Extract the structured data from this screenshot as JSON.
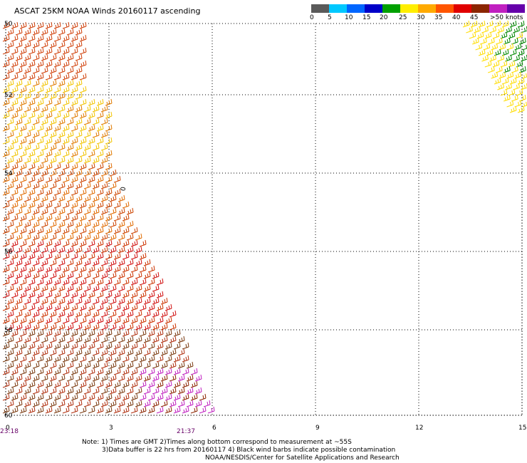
{
  "title": "ASCAT 25KM NOAA Winds 20160117 ascending",
  "legend": {
    "colors": [
      "#5a5a5a",
      "#00c8ff",
      "#0066ff",
      "#0000c8",
      "#00a000",
      "#ffee00",
      "#ffaa00",
      "#ff5500",
      "#e00000",
      "#8b2500",
      "#c020c0",
      "#6600aa"
    ],
    "labels": [
      "0",
      "5",
      "10",
      "15",
      "20",
      "25",
      "30",
      "35",
      "40",
      "45",
      ">50 knots"
    ]
  },
  "axes": {
    "x_ticks": [
      "0",
      "3",
      "6",
      "9",
      "12",
      "15"
    ],
    "y_ticks": [
      "50",
      "52",
      "54",
      "56",
      "58",
      "60"
    ],
    "time_start": "23:18",
    "time_end": "21:37",
    "marker": "0"
  },
  "swaths": [
    {
      "name": "west-swath",
      "colors": [
        "#cc3300",
        "#ee7700",
        "#ffcc00",
        "#dd0000",
        "#aa3300",
        "#cc00cc"
      ]
    },
    {
      "name": "east-swath",
      "colors": [
        "#ffee00",
        "#00a000"
      ]
    }
  ],
  "notes": {
    "line1": "Note: 1) Times are GMT 2)Times along bottom correspond to measurement at ~55S",
    "line2": "3)Data buffer is 22 hrs from 20160117 4) Black wind barbs indicate possible contamination",
    "line3": "NOAA/NESDIS/Center for Satellite Applications and Research"
  }
}
